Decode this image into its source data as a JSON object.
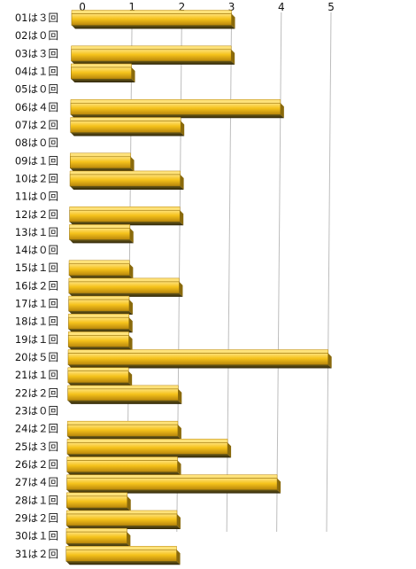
{
  "chart_data": {
    "type": "bar",
    "orientation": "horizontal",
    "style": "3d",
    "categories": [
      "01は３回",
      "02は０回",
      "03は３回",
      "04は１回",
      "05は０回",
      "06は４回",
      "07は２回",
      "08は０回",
      "09は１回",
      "10は２回",
      "11は０回",
      "12は２回",
      "13は１回",
      "14は０回",
      "15は１回",
      "16は２回",
      "17は１回",
      "18は１回",
      "19は１回",
      "20は５回",
      "21は１回",
      "22は２回",
      "23は０回",
      "24は２回",
      "25は３回",
      "26は２回",
      "27は４回",
      "28は１回",
      "29は２回",
      "30は１回",
      "31は２回"
    ],
    "values": [
      3,
      0,
      3,
      1,
      0,
      4,
      2,
      0,
      1,
      2,
      0,
      2,
      1,
      0,
      1,
      2,
      1,
      1,
      1,
      5,
      1,
      2,
      0,
      2,
      3,
      2,
      4,
      1,
      2,
      1,
      2
    ],
    "xlim": [
      0,
      5
    ],
    "xticks": [
      "0",
      "1",
      "2",
      "3",
      "4",
      "5"
    ],
    "tick_position": "top",
    "grid": true,
    "colors": {
      "bar_front": "#f5c21b",
      "bar_top": "#ffe27a",
      "bar_side": "#3d3410",
      "bar_dark_top": "#5a4a12"
    }
  }
}
